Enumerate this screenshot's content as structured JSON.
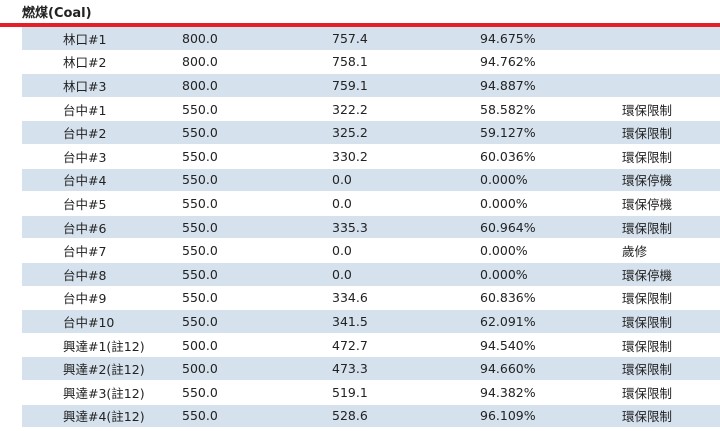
{
  "section": {
    "title": "燃煤(Coal)"
  },
  "rows": [
    {
      "unit": "林口#1",
      "capacity": "800.0",
      "net": "757.4",
      "ratio": "94.675%",
      "note": ""
    },
    {
      "unit": "林口#2",
      "capacity": "800.0",
      "net": "758.1",
      "ratio": "94.762%",
      "note": ""
    },
    {
      "unit": "林口#3",
      "capacity": "800.0",
      "net": "759.1",
      "ratio": "94.887%",
      "note": ""
    },
    {
      "unit": "台中#1",
      "capacity": "550.0",
      "net": "322.2",
      "ratio": "58.582%",
      "note": "環保限制"
    },
    {
      "unit": "台中#2",
      "capacity": "550.0",
      "net": "325.2",
      "ratio": "59.127%",
      "note": "環保限制"
    },
    {
      "unit": "台中#3",
      "capacity": "550.0",
      "net": "330.2",
      "ratio": "60.036%",
      "note": "環保限制"
    },
    {
      "unit": "台中#4",
      "capacity": "550.0",
      "net": "0.0",
      "ratio": "0.000%",
      "note": "環保停機"
    },
    {
      "unit": "台中#5",
      "capacity": "550.0",
      "net": "0.0",
      "ratio": "0.000%",
      "note": "環保停機"
    },
    {
      "unit": "台中#6",
      "capacity": "550.0",
      "net": "335.3",
      "ratio": "60.964%",
      "note": "環保限制"
    },
    {
      "unit": "台中#7",
      "capacity": "550.0",
      "net": "0.0",
      "ratio": "0.000%",
      "note": "歲修"
    },
    {
      "unit": "台中#8",
      "capacity": "550.0",
      "net": "0.0",
      "ratio": "0.000%",
      "note": "環保停機"
    },
    {
      "unit": "台中#9",
      "capacity": "550.0",
      "net": "334.6",
      "ratio": "60.836%",
      "note": "環保限制"
    },
    {
      "unit": "台中#10",
      "capacity": "550.0",
      "net": "341.5",
      "ratio": "62.091%",
      "note": "環保限制"
    },
    {
      "unit": "興達#1(註12)",
      "capacity": "500.0",
      "net": "472.7",
      "ratio": "94.540%",
      "note": "環保限制"
    },
    {
      "unit": "興達#2(註12)",
      "capacity": "500.0",
      "net": "473.3",
      "ratio": "94.660%",
      "note": "環保限制"
    },
    {
      "unit": "興達#3(註12)",
      "capacity": "550.0",
      "net": "519.1",
      "ratio": "94.382%",
      "note": "環保限制"
    },
    {
      "unit": "興達#4(註12)",
      "capacity": "550.0",
      "net": "528.6",
      "ratio": "96.109%",
      "note": "環保限制"
    }
  ]
}
